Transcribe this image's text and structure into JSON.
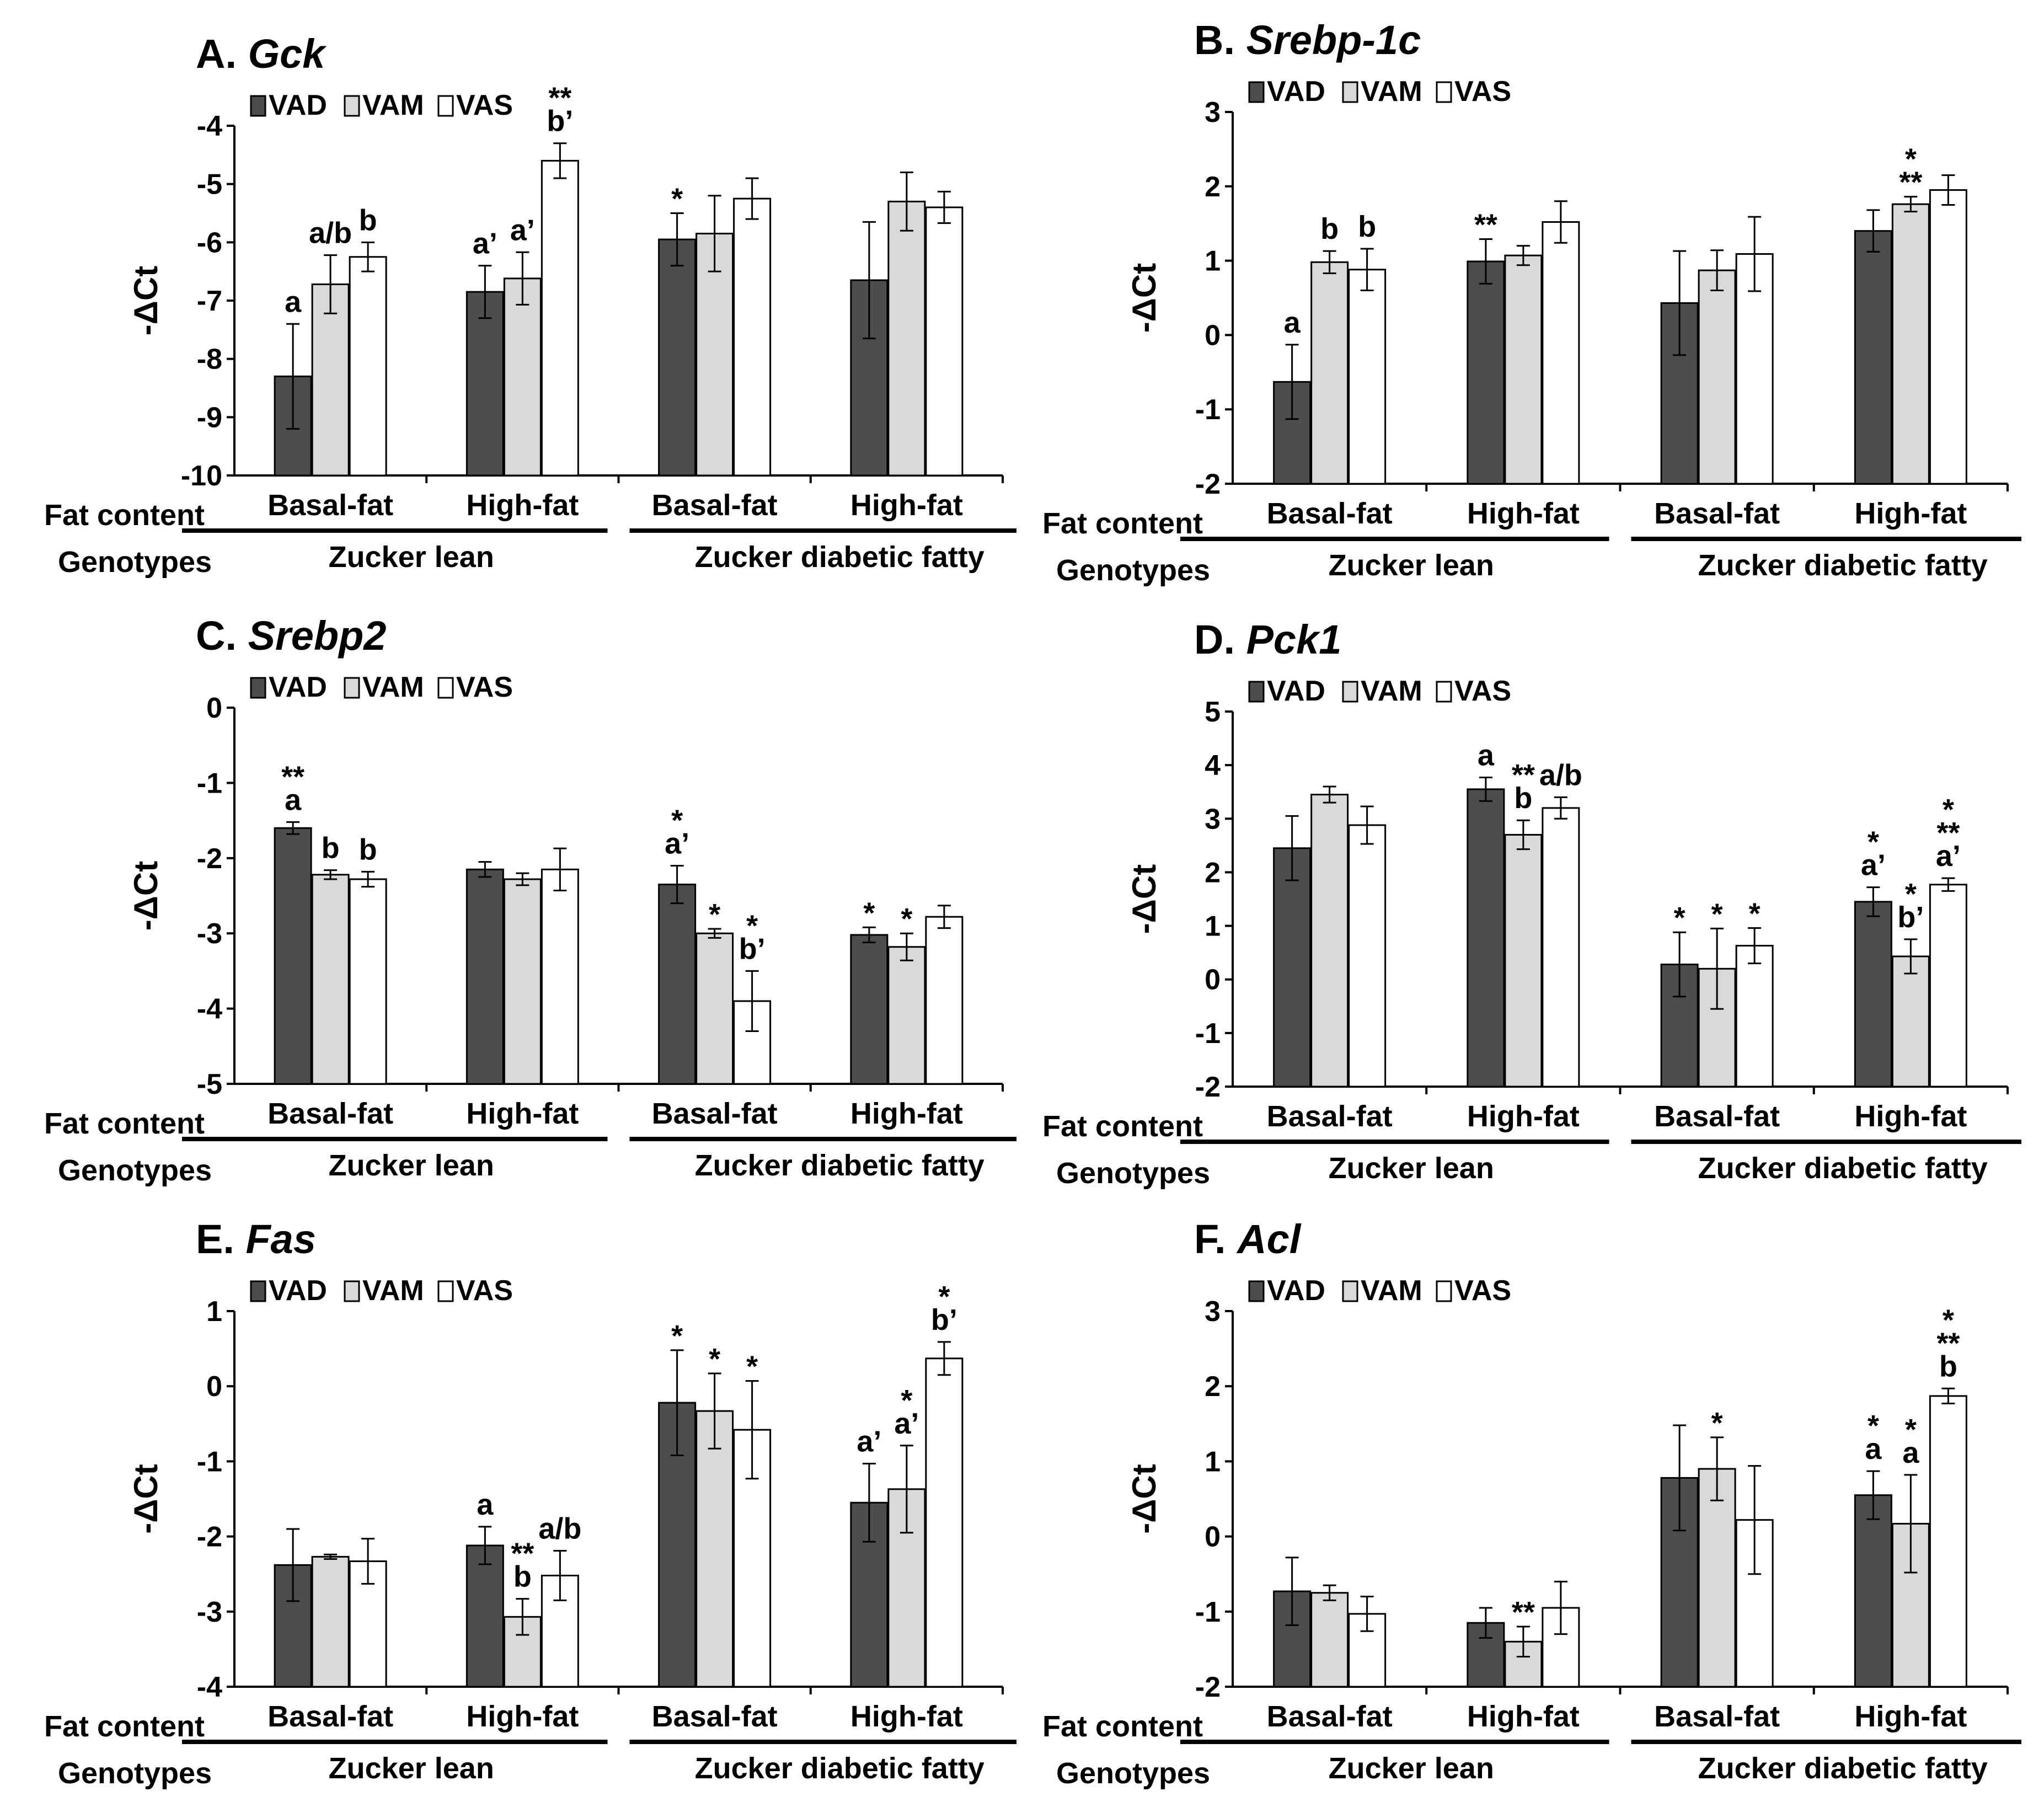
{
  "legend": [
    "VAD",
    "VAM",
    "VAS"
  ],
  "colors": {
    "VAD": "#4d4d4d",
    "VAM": "#d9d9d9",
    "VAS": "#ffffff",
    "axis": "#000000"
  },
  "row_labels": {
    "fat": "Fat content",
    "genotype": "Genotypes"
  },
  "fat_labels": [
    "Basal-fat",
    "High-fat",
    "Basal-fat",
    "High-fat"
  ],
  "genotype_labels": [
    "Zucker lean",
    "Zucker diabetic fatty"
  ],
  "ylabel": "-ΔCt",
  "chart_data": [
    {
      "type": "bar",
      "title_prefix": "A.",
      "title_gene": "Gck",
      "ylim": [
        -10,
        -4
      ],
      "ytick_step": 1,
      "legend_position": "top-left",
      "categories": [
        "Zucker lean Basal-fat",
        "Zucker lean High-fat",
        "Zucker diabetic fatty Basal-fat",
        "Zucker diabetic fatty High-fat"
      ],
      "series": [
        {
          "name": "VAD",
          "values": [
            -8.3,
            -6.85,
            -5.95,
            -6.65
          ],
          "errors": [
            0.9,
            0.45,
            0.45,
            1.0
          ]
        },
        {
          "name": "VAM",
          "values": [
            -6.72,
            -6.62,
            -5.85,
            -5.3
          ],
          "errors": [
            0.5,
            0.45,
            0.65,
            0.5
          ]
        },
        {
          "name": "VAS",
          "values": [
            -6.25,
            -4.6,
            -5.25,
            -5.4
          ],
          "errors": [
            0.25,
            0.3,
            0.35,
            0.27
          ]
        }
      ],
      "annotations": [
        [
          "a"
        ],
        [
          "a/b"
        ],
        [
          "b"
        ],
        [
          "a’"
        ],
        [
          "a’"
        ],
        [
          "**",
          "b’"
        ],
        [
          "*"
        ],
        [],
        [],
        [],
        [],
        []
      ]
    },
    {
      "type": "bar",
      "title_prefix": "B.",
      "title_gene": "Srebp-1c",
      "ylim": [
        -2,
        3
      ],
      "ytick_step": 1,
      "legend_position": "top-left",
      "categories": [
        "Zucker lean Basal-fat",
        "Zucker lean High-fat",
        "Zucker diabetic fatty Basal-fat",
        "Zucker diabetic fatty High-fat"
      ],
      "series": [
        {
          "name": "VAD",
          "values": [
            -0.63,
            0.99,
            0.43,
            1.4
          ],
          "errors": [
            0.5,
            0.3,
            0.7,
            0.28
          ]
        },
        {
          "name": "VAM",
          "values": [
            0.98,
            1.07,
            0.87,
            1.76
          ],
          "errors": [
            0.15,
            0.13,
            0.27,
            0.1
          ]
        },
        {
          "name": "VAS",
          "values": [
            0.88,
            1.52,
            1.09,
            1.95
          ],
          "errors": [
            0.28,
            0.28,
            0.5,
            0.2
          ]
        }
      ],
      "annotations": [
        [
          "a"
        ],
        [
          "b"
        ],
        [
          "b"
        ],
        [
          "**"
        ],
        [],
        [],
        [],
        [],
        [],
        [],
        [
          "*",
          "**"
        ],
        []
      ]
    },
    {
      "type": "bar",
      "title_prefix": "C.",
      "title_gene": "Srebp2",
      "ylim": [
        -5,
        0
      ],
      "ytick_step": 1,
      "legend_position": "top-left",
      "categories": [
        "Zucker lean Basal-fat",
        "Zucker lean High-fat",
        "Zucker diabetic fatty Basal-fat",
        "Zucker diabetic fatty High-fat"
      ],
      "series": [
        {
          "name": "VAD",
          "values": [
            -1.6,
            -2.15,
            -2.35,
            -3.02
          ],
          "errors": [
            0.08,
            0.1,
            0.25,
            0.1
          ]
        },
        {
          "name": "VAM",
          "values": [
            -2.22,
            -2.28,
            -3.0,
            -3.18
          ],
          "errors": [
            0.06,
            0.08,
            0.06,
            0.18
          ]
        },
        {
          "name": "VAS",
          "values": [
            -2.28,
            -2.15,
            -3.9,
            -2.78
          ],
          "errors": [
            0.1,
            0.28,
            0.4,
            0.15
          ]
        }
      ],
      "annotations": [
        [
          "**",
          "a"
        ],
        [
          "b"
        ],
        [
          "b"
        ],
        [],
        [],
        [],
        [
          "*",
          "a’"
        ],
        [
          "*"
        ],
        [
          "*",
          "b’"
        ],
        [
          "*"
        ],
        [
          "*"
        ],
        []
      ]
    },
    {
      "type": "bar",
      "title_prefix": "D.",
      "title_gene": "Pck1",
      "ylim": [
        -2,
        5
      ],
      "ytick_step": 1,
      "legend_position": "top-left",
      "categories": [
        "Zucker lean Basal-fat",
        "Zucker lean High-fat",
        "Zucker diabetic fatty Basal-fat",
        "Zucker diabetic fatty High-fat"
      ],
      "series": [
        {
          "name": "VAD",
          "values": [
            2.45,
            3.55,
            0.28,
            1.45
          ],
          "errors": [
            0.6,
            0.22,
            0.6,
            0.27
          ]
        },
        {
          "name": "VAM",
          "values": [
            3.45,
            2.7,
            0.2,
            0.43
          ],
          "errors": [
            0.15,
            0.27,
            0.75,
            0.32
          ]
        },
        {
          "name": "VAS",
          "values": [
            2.88,
            3.2,
            0.63,
            1.77
          ],
          "errors": [
            0.35,
            0.2,
            0.33,
            0.12
          ]
        }
      ],
      "annotations": [
        [],
        [],
        [],
        [
          "a"
        ],
        [
          "**",
          "b"
        ],
        [
          "a/b"
        ],
        [
          "*"
        ],
        [
          "*"
        ],
        [
          "*"
        ],
        [
          "*",
          "a’"
        ],
        [
          "*",
          "b’"
        ],
        [
          "*",
          "**",
          "a’"
        ]
      ]
    },
    {
      "type": "bar",
      "title_prefix": "E.",
      "title_gene": "Fas",
      "ylim": [
        -4,
        1
      ],
      "ytick_step": 1,
      "legend_position": "top-left",
      "categories": [
        "Zucker lean Basal-fat",
        "Zucker lean High-fat",
        "Zucker diabetic fatty Basal-fat",
        "Zucker diabetic fatty High-fat"
      ],
      "series": [
        {
          "name": "VAD",
          "values": [
            -2.38,
            -2.12,
            -0.22,
            -1.55
          ],
          "errors": [
            0.48,
            0.25,
            0.7,
            0.52
          ]
        },
        {
          "name": "VAM",
          "values": [
            -2.27,
            -3.07,
            -0.33,
            -1.37
          ],
          "errors": [
            0.03,
            0.24,
            0.5,
            0.58
          ]
        },
        {
          "name": "VAS",
          "values": [
            -2.33,
            -2.52,
            -0.58,
            0.37
          ],
          "errors": [
            0.3,
            0.33,
            0.65,
            0.22
          ]
        }
      ],
      "annotations": [
        [],
        [],
        [],
        [
          "a"
        ],
        [
          "**",
          "b"
        ],
        [
          "a/b"
        ],
        [
          "*"
        ],
        [
          "*"
        ],
        [
          "*"
        ],
        [
          "a’"
        ],
        [
          "*",
          "a’"
        ],
        [
          "*",
          "b’"
        ]
      ]
    },
    {
      "type": "bar",
      "title_prefix": "F.",
      "title_gene": "Acl",
      "ylim": [
        -2,
        3
      ],
      "ytick_step": 1,
      "legend_position": "top-left",
      "categories": [
        "Zucker lean Basal-fat",
        "Zucker lean High-fat",
        "Zucker diabetic fatty Basal-fat",
        "Zucker diabetic fatty High-fat"
      ],
      "series": [
        {
          "name": "VAD",
          "values": [
            -0.73,
            -1.15,
            0.78,
            0.55
          ],
          "errors": [
            0.45,
            0.2,
            0.7,
            0.32
          ]
        },
        {
          "name": "VAM",
          "values": [
            -0.75,
            -1.4,
            0.9,
            0.17
          ],
          "errors": [
            0.1,
            0.2,
            0.42,
            0.65
          ]
        },
        {
          "name": "VAS",
          "values": [
            -1.03,
            -0.95,
            0.22,
            1.87
          ],
          "errors": [
            0.23,
            0.35,
            0.72,
            0.1
          ]
        }
      ],
      "annotations": [
        [],
        [],
        [],
        [],
        [
          "**"
        ],
        [],
        [],
        [
          "*"
        ],
        [],
        [
          "*",
          "a"
        ],
        [
          "*",
          "a"
        ],
        [
          "*",
          "**",
          "b"
        ]
      ]
    }
  ]
}
